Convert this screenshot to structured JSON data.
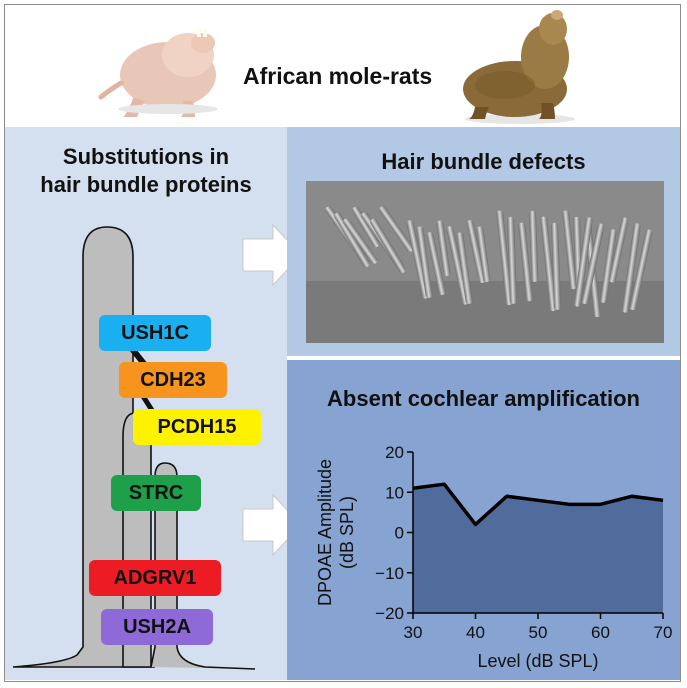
{
  "title": "African mole-rats",
  "left_heading_line1": "Substitutions in",
  "left_heading_line2": "hair bundle proteins",
  "top_right_heading": "Hair bundle defects",
  "bottom_right_heading": "Absent cochlear amplification",
  "proteins": [
    {
      "name": "USH1C",
      "color": "#1aaff0"
    },
    {
      "name": "CDH23",
      "color": "#f7941d"
    },
    {
      "name": "PCDH15",
      "color": "#fff200"
    },
    {
      "name": "STRC",
      "color": "#1ea04a"
    },
    {
      "name": "ADGRV1",
      "color": "#ed1c24"
    },
    {
      "name": "USH2A",
      "color": "#8e6ad8"
    }
  ],
  "chart_data": {
    "type": "area",
    "x": [
      30,
      35,
      40,
      45,
      50,
      55,
      60,
      65,
      70
    ],
    "y": [
      11,
      12,
      2,
      9,
      8,
      7,
      7,
      9,
      8
    ],
    "xlabel": "Level (dB SPL)",
    "ylabel_line1": "DPOAE Amplitude",
    "ylabel_line2": "(dB SPL)",
    "xlim": [
      30,
      70
    ],
    "ylim": [
      -20,
      20
    ],
    "xticks": [
      30,
      40,
      50,
      60,
      70
    ],
    "yticks": [
      20,
      10,
      0,
      -10,
      -20
    ],
    "fill_color": "#506c9c",
    "line_color": "#000000"
  }
}
